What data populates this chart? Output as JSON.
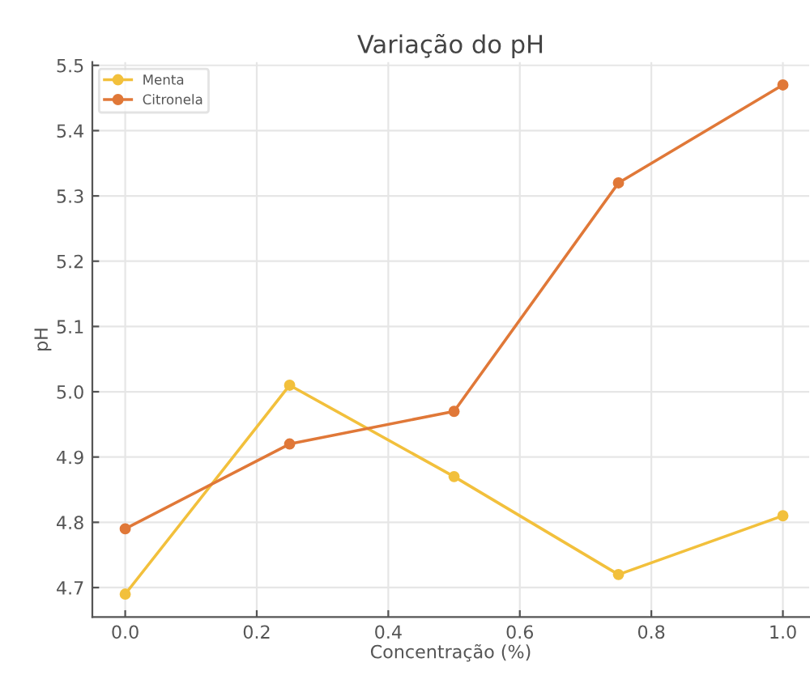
{
  "chart_data": {
    "type": "line",
    "title": "Variação do pH",
    "xlabel": "Concentração (%)",
    "ylabel": "pH",
    "x": [
      0.0,
      0.25,
      0.5,
      0.75,
      1.0
    ],
    "series": [
      {
        "name": "Menta",
        "color": "#f2c03c",
        "values": [
          4.69,
          5.01,
          4.87,
          4.72,
          4.81
        ]
      },
      {
        "name": "Citronela",
        "color": "#e07838",
        "values": [
          4.79,
          4.92,
          4.97,
          5.32,
          5.47
        ]
      }
    ],
    "xlim": [
      -0.05,
      1.04
    ],
    "ylim": [
      4.655,
      5.505
    ],
    "xticks": [
      {
        "value": 0.0,
        "label": "0.0"
      },
      0.2,
      0.4,
      0.6,
      0.8,
      {
        "value": 1.0,
        "label": "1.0"
      }
    ],
    "yticks": [
      4.7,
      4.8,
      4.9,
      {
        "value": 5.0,
        "label": "5.0"
      },
      5.1,
      5.2,
      5.3,
      5.4,
      5.5
    ],
    "grid": true,
    "legend": "top left",
    "marker": "circle",
    "line_style": "solid"
  }
}
